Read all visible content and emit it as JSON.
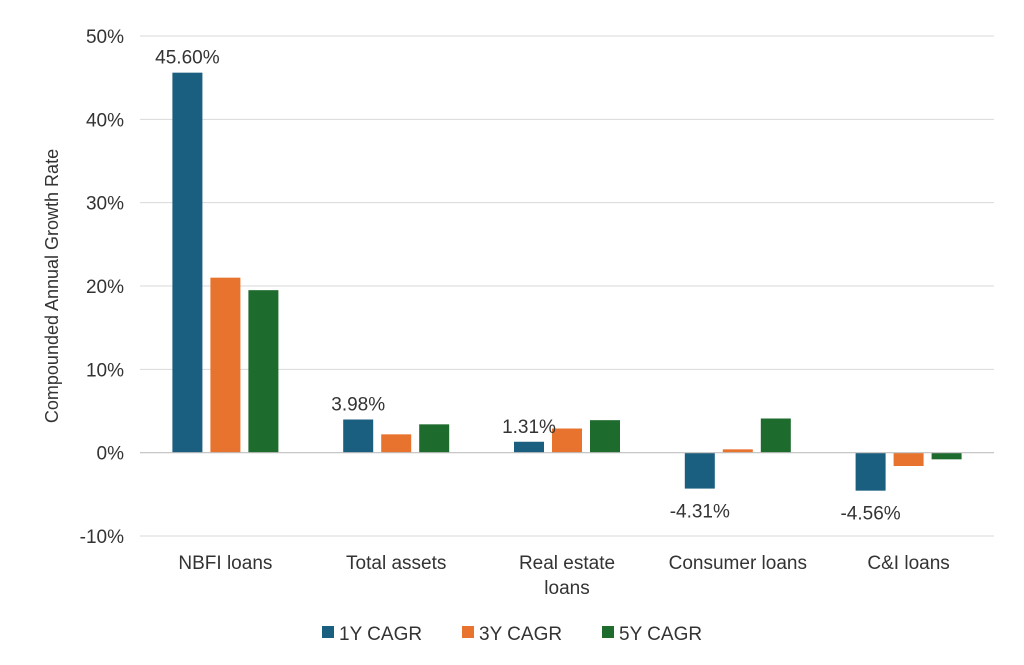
{
  "chart_data": {
    "type": "bar",
    "title": "",
    "xlabel": "",
    "ylabel": "Compounded Annual Growth Rate",
    "ylim": [
      -10,
      50
    ],
    "ytick_step": 10,
    "ytick_suffix": "%",
    "grid": true,
    "legend_position": "bottom",
    "categories": [
      [
        "NBFI loans"
      ],
      [
        "Total assets"
      ],
      [
        "Real estate",
        "loans"
      ],
      [
        "Consumer loans"
      ],
      [
        "C&I loans"
      ]
    ],
    "series": [
      {
        "name": "1Y CAGR",
        "color": "#1A5E80",
        "values": [
          45.6,
          3.98,
          1.31,
          -4.31,
          -4.56
        ]
      },
      {
        "name": "3Y CAGR",
        "color": "#E8732E",
        "values": [
          21.0,
          2.2,
          2.9,
          0.4,
          -1.6
        ]
      },
      {
        "name": "5Y CAGR",
        "color": "#1E6B2E",
        "values": [
          19.5,
          3.4,
          3.9,
          4.1,
          -0.8
        ]
      }
    ],
    "data_labels": [
      {
        "series": 0,
        "category": 0,
        "text": "45.60%"
      },
      {
        "series": 0,
        "category": 1,
        "text": "3.98%"
      },
      {
        "series": 0,
        "category": 2,
        "text": "1.31%"
      },
      {
        "series": 0,
        "category": 3,
        "text": "-4.31%"
      },
      {
        "series": 0,
        "category": 4,
        "text": "-4.56%"
      }
    ]
  }
}
